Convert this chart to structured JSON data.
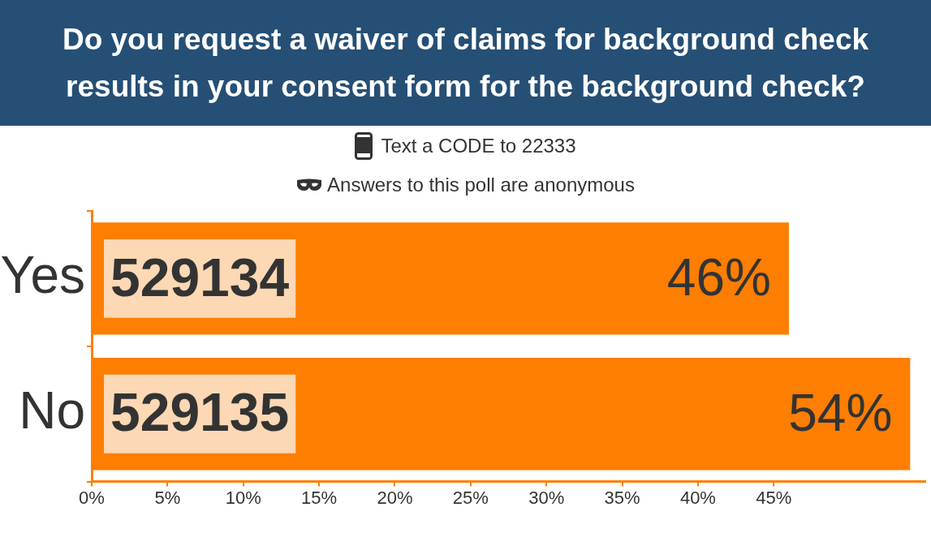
{
  "chart_data": {
    "type": "bar",
    "orientation": "horizontal",
    "title": "Do you request a waiver of claims for background check results in your consent form for the background check?",
    "subtitle": "Text a CODE to 22333",
    "categories": [
      "Yes",
      "No"
    ],
    "values": [
      46,
      54
    ],
    "color": "#fd7e00",
    "value_labels": [
      "46%",
      "54%"
    ],
    "xlim": [
      0,
      55
    ],
    "xticks": [
      {
        "value": 0,
        "label": "0%"
      },
      {
        "value": 5,
        "label": "5%"
      },
      {
        "value": 10,
        "label": "10%"
      },
      {
        "value": 15,
        "label": "15%"
      },
      {
        "value": 20,
        "label": "20%"
      },
      {
        "value": 25,
        "label": "25%"
      },
      {
        "value": 30,
        "label": "30%"
      },
      {
        "value": 35,
        "label": "35%"
      },
      {
        "value": 40,
        "label": "40%"
      },
      {
        "value": 45,
        "label": "45%"
      }
    ],
    "annotations": [
      "Answers to this poll are anonymous",
      {
        "text": "529134",
        "x": 0,
        "y": "Yes"
      },
      {
        "text": "529135",
        "x": 0,
        "y": "No"
      }
    ]
  }
}
